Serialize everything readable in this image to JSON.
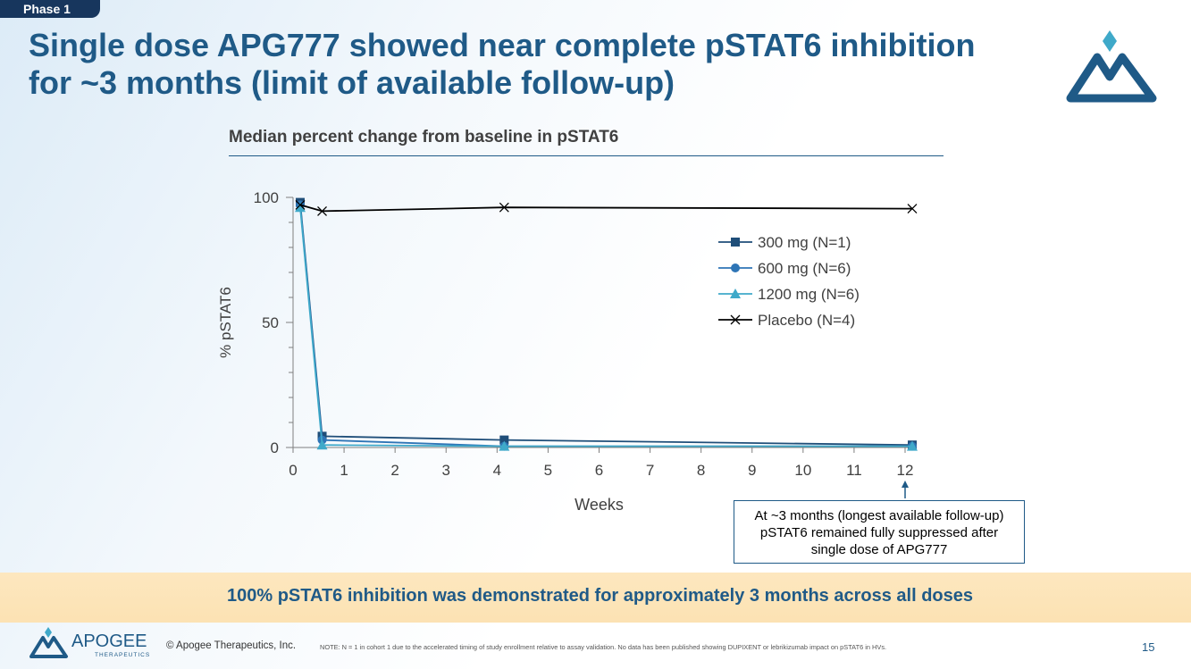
{
  "header": {
    "phase_tag": "Phase 1",
    "title_line1": "Single dose APG777 showed near complete pSTAT6 inhibition",
    "title_line2": "for ~3 months (limit of available follow-up)"
  },
  "chart_heading": "Median percent change from baseline in pSTAT6",
  "chart_data": {
    "type": "line",
    "title": "Median percent change from baseline in pSTAT6",
    "xlabel": "Weeks",
    "ylabel": "% pSTAT6",
    "xlim": [
      0,
      12
    ],
    "ylim": [
      0,
      100
    ],
    "x_ticks": [
      "0",
      "1",
      "2",
      "3",
      "4",
      "5",
      "6",
      "7",
      "8",
      "9",
      "10",
      "11",
      "12"
    ],
    "y_ticks": [
      "0",
      "50",
      "100"
    ],
    "legend_position": "right",
    "series": [
      {
        "name": "300 mg (N=1)",
        "marker": "square",
        "color": "#1f4e79",
        "x": [
          0.14,
          0.57,
          4.14,
          12.14
        ],
        "y": [
          98,
          4.5,
          3,
          1
        ]
      },
      {
        "name": "600 mg (N=6)",
        "marker": "circle",
        "color": "#2e75b6",
        "x": [
          0.14,
          0.57,
          4.14,
          12.14
        ],
        "y": [
          97,
          3,
          0.5,
          0.5
        ]
      },
      {
        "name": "1200 mg (N=6)",
        "marker": "triangle",
        "color": "#3fa9c9",
        "x": [
          0.14,
          0.57,
          4.14,
          12.14
        ],
        "y": [
          96,
          1,
          0.5,
          0.5
        ]
      },
      {
        "name": "Placebo (N=4)",
        "marker": "x",
        "color": "#000000",
        "x": [
          0.14,
          0.57,
          4.14,
          12.14
        ],
        "y": [
          97,
          94.5,
          96,
          95.5
        ]
      }
    ]
  },
  "callout": {
    "text": "At ~3 months (longest available follow-up) pSTAT6 remained fully suppressed after single dose of APG777"
  },
  "banner_text": "100% pSTAT6 inhibition was demonstrated for approximately 3 months across all doses",
  "footer": {
    "logo_name": "APOGEE",
    "logo_sub": "THERAPEUTICS",
    "copyright": "© Apogee Therapeutics, Inc.",
    "note": "NOTE: N = 1 in cohort 1 due to the accelerated timing of study enrollment relative to assay validation. No data has been published showing DUPIXENT or lebrikizumab impact on pSTAT6 in HVs.",
    "page_number": "15"
  },
  "colors": {
    "brand_blue": "#1f5a87",
    "navy": "#17365d",
    "banner": "#fce2b3"
  }
}
